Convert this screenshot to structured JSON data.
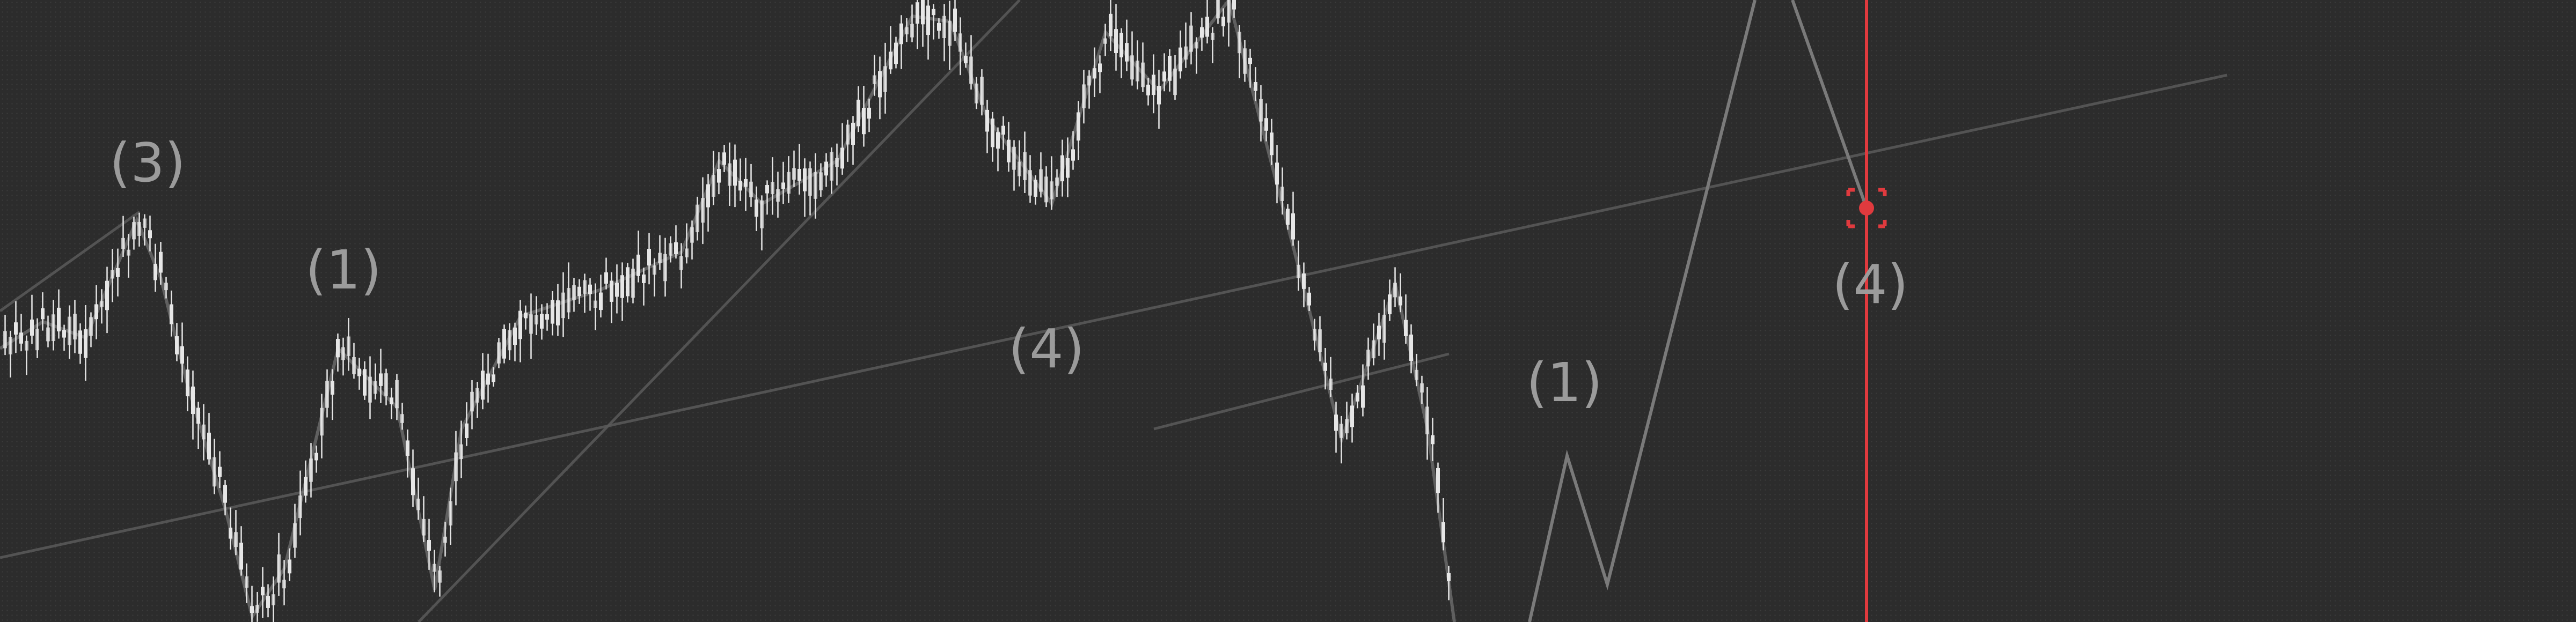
{
  "chart_data": {
    "type": "candlestick",
    "title": "",
    "xlabel": "",
    "ylabel": "",
    "grid": false,
    "legend": "none",
    "colors": {
      "background": "#2c2c2c",
      "candles": "#e6e6e6",
      "wave_path": "#8a8a8a",
      "trend_lines": "#5a5a5a",
      "projection": "#7a7a7a",
      "marker_line": "#e03a3e"
    },
    "wave_labels": [
      {
        "id": "w3-left",
        "text": "(3)"
      },
      {
        "id": "w1-left",
        "text": "(1)"
      },
      {
        "id": "w4-mid",
        "text": "(4)"
      },
      {
        "id": "w1-right",
        "text": "(1)"
      },
      {
        "id": "w4-right",
        "text": "(4)"
      }
    ],
    "marker_icon": "crosshair-target-icon"
  }
}
